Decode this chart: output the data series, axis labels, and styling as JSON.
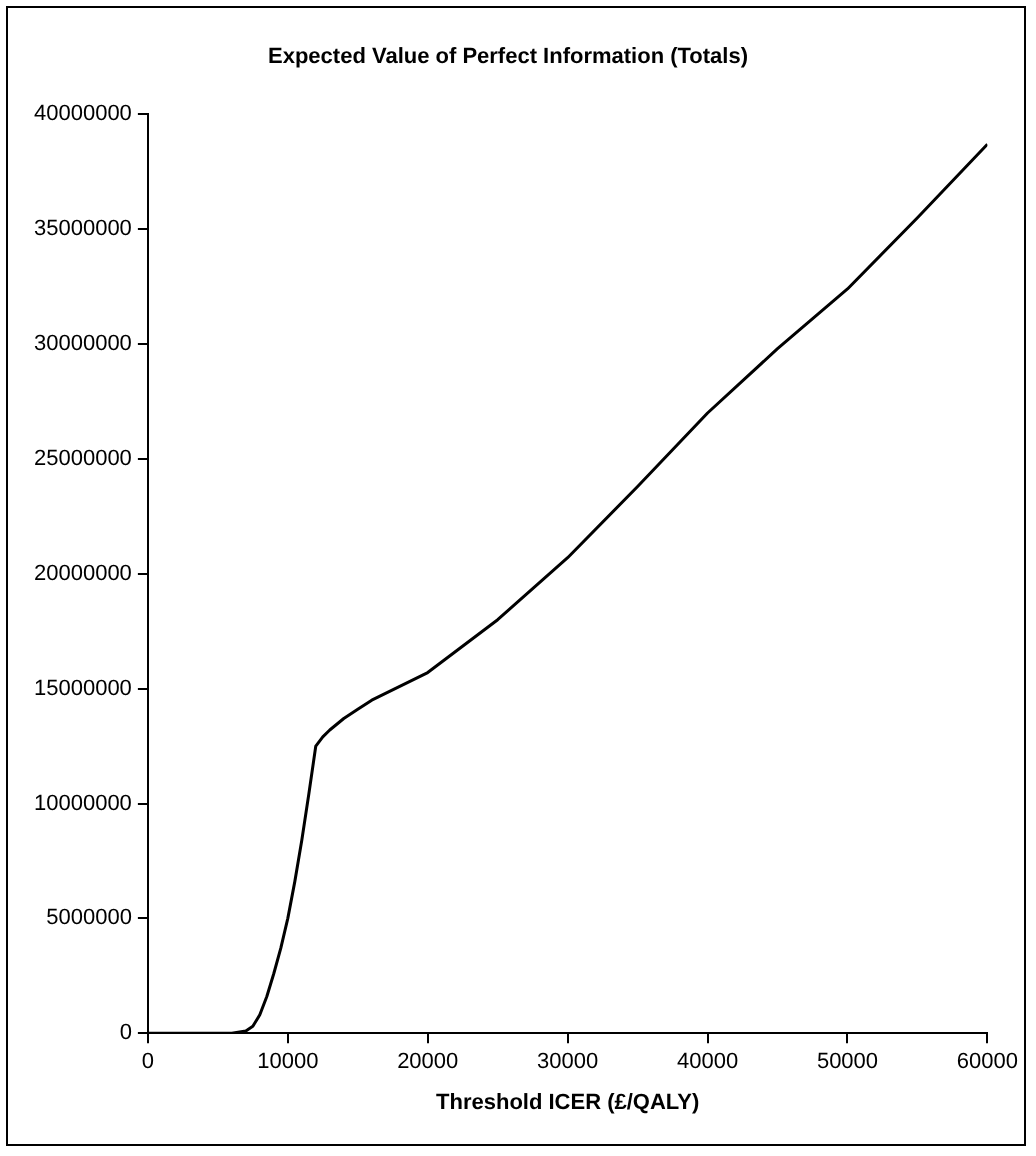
{
  "chart_data": {
    "type": "line",
    "title": "Expected Value of Perfect Information (Totals)",
    "xlabel": "Threshold ICER (£/QALY)",
    "x": [
      0,
      6000,
      7000,
      7500,
      8000,
      8500,
      9000,
      9500,
      10000,
      10500,
      11000,
      11500,
      12000,
      12500,
      13000,
      14000,
      15000,
      16000,
      18000,
      20000,
      25000,
      30000,
      35000,
      40000,
      45000,
      50000,
      55000,
      60000
    ],
    "series": [
      {
        "color": "#000000",
        "values": [
          0,
          0,
          100000,
          300000,
          800000,
          1600000,
          2600000,
          3700000,
          5000000,
          6600000,
          8400000,
          10400000,
          12500000,
          12900000,
          13200000,
          13700000,
          14100000,
          14500000,
          15100000,
          15700000,
          18000000,
          20700000,
          23800000,
          27000000,
          29800000,
          32400000,
          35500000,
          38700000
        ]
      }
    ],
    "xlim": [
      0,
      60000
    ],
    "xticks": [
      0,
      10000,
      20000,
      30000,
      40000,
      50000,
      60000
    ],
    "ylim": [
      0,
      40000000
    ],
    "yticks": [
      0,
      5000000,
      10000000,
      15000000,
      20000000,
      25000000,
      30000000,
      35000000,
      40000000
    ],
    "grid": false,
    "legend": false,
    "marker": "none",
    "line_style": "solid"
  }
}
